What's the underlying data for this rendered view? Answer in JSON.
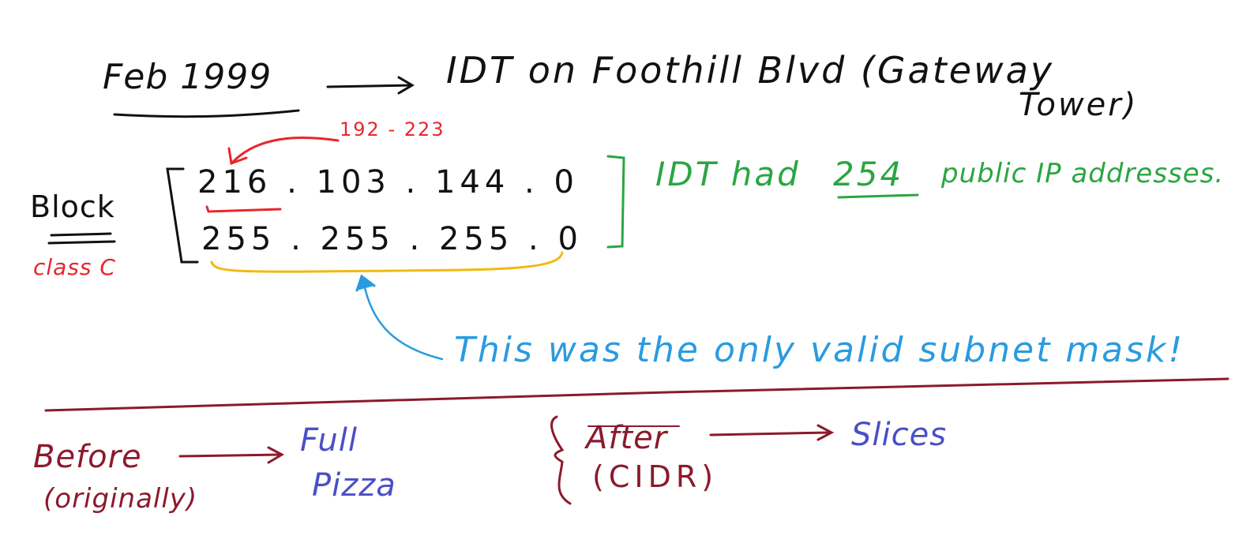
{
  "colors": {
    "black": "#111111",
    "red": "#e8262b",
    "green": "#2aa642",
    "yellow": "#f3b90e",
    "blue": "#2a9be0",
    "maroon": "#8b1a2c",
    "purple": "#4a4fc6"
  },
  "header": {
    "date": "Feb 1999",
    "destination_line1": "IDT on Foothill Blvd (Gateway",
    "destination_line2": "Tower)"
  },
  "block": {
    "label": "Block",
    "class_label": "class C",
    "range_note": "192 - 223",
    "ip_address": "216 . 103 . 144 . 0",
    "subnet_mask": "255 . 255 . 255 . 0",
    "public_note_prefix": "IDT had",
    "public_count": "254",
    "public_note_suffix": "public IP addresses.",
    "mask_note": "This was the only valid subnet mask!"
  },
  "comparison": {
    "before_label": "Before",
    "before_sub": "(originally)",
    "full_line1": "Full",
    "full_line2": "Pizza",
    "after_label": "After",
    "after_sub": "(CIDR)",
    "slices_label": "Slices"
  }
}
